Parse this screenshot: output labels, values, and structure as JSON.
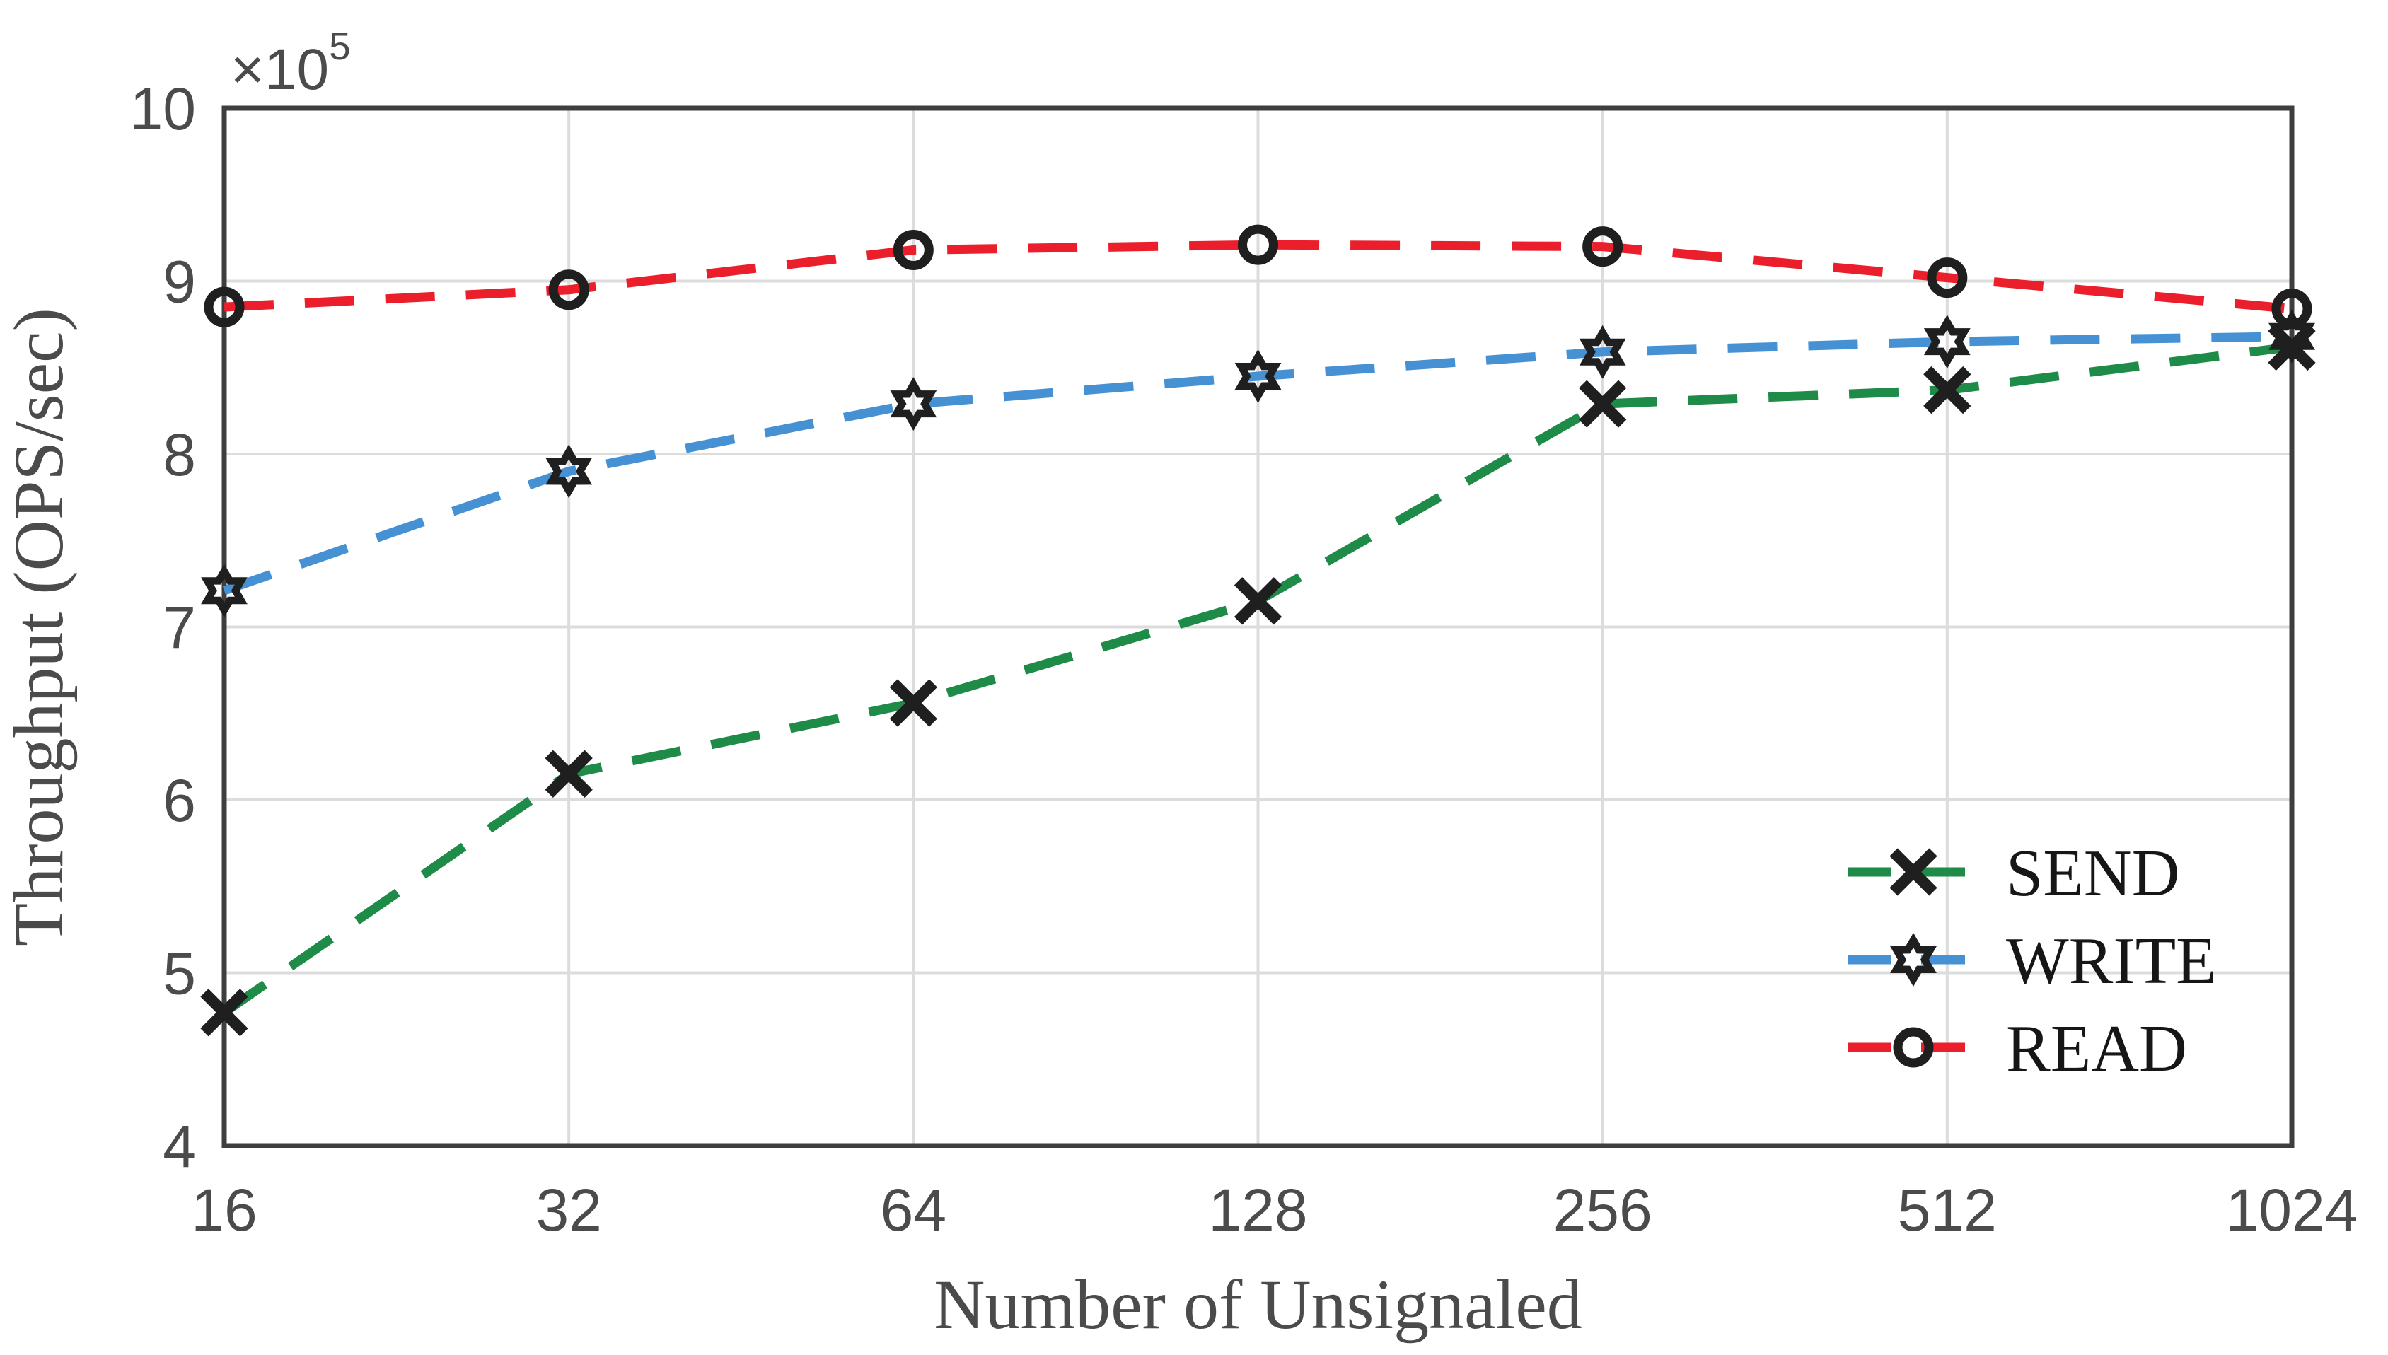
{
  "chart_data": {
    "type": "line",
    "title": "",
    "xlabel": "Number of Unsignaled",
    "ylabel": "Throughput (OPS/sec)",
    "x_scale": "log2",
    "x": [
      16,
      32,
      64,
      128,
      256,
      512,
      1024
    ],
    "y_ticks": [
      4,
      5,
      6,
      7,
      8,
      9,
      10
    ],
    "ylim": [
      4,
      10
    ],
    "unit_multiplier": 100000,
    "y_multiplier_base": "×10",
    "y_exponent": "5",
    "grid": true,
    "legend_position": "lower right",
    "series": [
      {
        "name": "SEND",
        "color": "#1e8c48",
        "marker": "x",
        "line_style": "dashed",
        "values": [
          4.77,
          6.15,
          6.56,
          7.15,
          8.29,
          8.37,
          8.62
        ]
      },
      {
        "name": "WRITE",
        "color": "#4691d3",
        "marker": "star6",
        "line_style": "dashed",
        "values": [
          7.21,
          7.9,
          8.29,
          8.45,
          8.59,
          8.65,
          8.68
        ]
      },
      {
        "name": "READ",
        "color": "#eb1f2b",
        "marker": "circle",
        "line_style": "dashed",
        "values": [
          8.85,
          8.95,
          9.18,
          9.21,
          9.2,
          9.02,
          8.84
        ]
      }
    ]
  },
  "style_colors": {
    "grid": "#dcdcdc",
    "frame": "#3e3e3e",
    "marker": "#1f1f1f",
    "tick_text": "#4b4b4b",
    "legend_text": "#161616",
    "background": "#ffffff"
  }
}
